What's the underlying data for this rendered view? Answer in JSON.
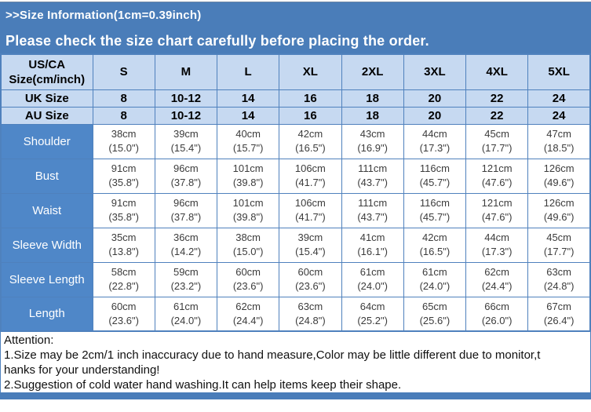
{
  "header": {
    "size_info_line": ">>Size Information(1cm=0.39inch)",
    "notice_line": "Please check the size chart carefully before placing the order."
  },
  "size_table": {
    "columns": [
      "US/CA Size(cm/inch)",
      "S",
      "M",
      "L",
      "XL",
      "2XL",
      "3XL",
      "4XL",
      "5XL"
    ],
    "size_rows": [
      {
        "label": "UK Size",
        "values": [
          "8",
          "10-12",
          "14",
          "16",
          "18",
          "20",
          "22",
          "24"
        ]
      },
      {
        "label": "AU Size",
        "values": [
          "8",
          "10-12",
          "14",
          "16",
          "18",
          "20",
          "22",
          "24"
        ]
      }
    ],
    "measurement_rows": [
      {
        "label": "Shoulder",
        "values": [
          "38cm\n(15.0\")",
          "39cm\n(15.4\")",
          "40cm\n(15.7\")",
          "42cm\n(16.5\")",
          "43cm\n(16.9\")",
          "44cm\n(17.3\")",
          "45cm\n(17.7\")",
          "47cm\n(18.5\")"
        ]
      },
      {
        "label": "Bust",
        "values": [
          "91cm\n(35.8\")",
          "96cm\n(37.8\")",
          "101cm\n(39.8\")",
          "106cm\n(41.7\")",
          "111cm\n(43.7\")",
          "116cm\n(45.7\")",
          "121cm\n(47.6\")",
          "126cm\n(49.6\")"
        ]
      },
      {
        "label": "Waist",
        "values": [
          "91cm\n(35.8\")",
          "96cm\n(37.8\")",
          "101cm\n(39.8\")",
          "106cm\n(41.7\")",
          "111cm\n(43.7\")",
          "116cm\n(45.7\")",
          "121cm\n(47.6\")",
          "126cm\n(49.6\")"
        ]
      },
      {
        "label": "Sleeve Width",
        "values": [
          "35cm\n(13.8\")",
          "36cm\n(14.2\")",
          "38cm\n(15.0\")",
          "39cm\n(15.4\")",
          "41cm\n(16.1\")",
          "42cm\n(16.5\")",
          "44cm\n(17.3\")",
          "45cm\n(17.7\")"
        ]
      },
      {
        "label": "Sleeve Length",
        "values": [
          "58cm\n(22.8\")",
          "59cm\n(23.2\")",
          "60cm\n(23.6\")",
          "60cm\n(23.6\")",
          "61cm\n(24.0\")",
          "61cm\n(24.0\")",
          "62cm\n(24.4\")",
          "63cm\n(24.8\")"
        ]
      },
      {
        "label": "Length",
        "values": [
          "60cm\n(23.6\")",
          "61cm\n(24.0\")",
          "62cm\n(24.4\")",
          "63cm\n(24.8\")",
          "64cm\n(25.2\")",
          "65cm\n(25.6\")",
          "66cm\n(26.0\")",
          "67cm\n(26.4\")"
        ]
      }
    ]
  },
  "attention": {
    "title": "Attention:",
    "lines": [
      "1.Size may be 2cm/1 inch inaccuracy due to hand measure,Color may be little different due to monitor,t",
      "hanks for your understanding!",
      "2.Suggestion of cold water hand washing.It can help items keep their shape."
    ]
  },
  "colors": {
    "banner_blue": "#4a7db9",
    "label_blue": "#4f87c8",
    "header_light_blue": "#c6d9f1",
    "grid_border_blue": "#4f81bd"
  }
}
